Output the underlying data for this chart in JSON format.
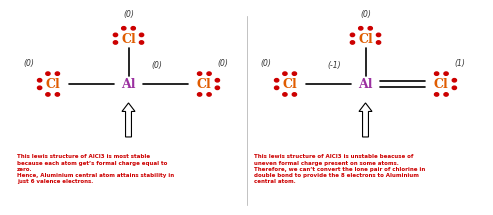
{
  "bg_color": "#ffffff",
  "al_color": "#9B30A0",
  "cl_color": "#E05C00",
  "bond_color": "#000000",
  "dot_color": "#CC0000",
  "text_color": "#CC0000",
  "charge_color": "#333333",
  "left_text": "This lewis structure of AlCl3 is most stable\nbecause each atom get’s formal charge equal to\nzero.\nHence, Aluminium central atom attains stability in\njust 6 valence electrons.",
  "right_text": "This lewis structure of AlCl3 is unstable beacuse of\nuneven formal charge present on some atoms.\nTherefore, we can’t convert the lone pair of chlorine in\ndouble bond to provide the 8 electrons to Aluminium\ncentral atom.",
  "left_charges": {
    "top_cl": "(0)",
    "left_cl": "(0)",
    "right_cl": "(0)",
    "al": "(0)"
  },
  "right_charges": {
    "top_cl": "(0)",
    "left_cl": "(0)",
    "right_cl": "(1)",
    "al": "(-1)"
  }
}
